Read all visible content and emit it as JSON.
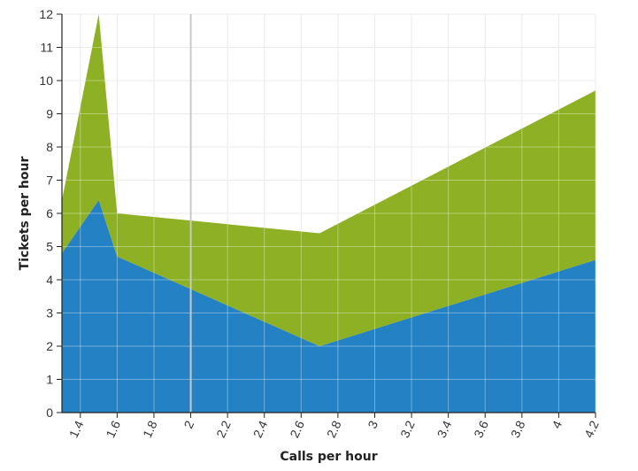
{
  "chart_data": {
    "type": "area",
    "stacked": true,
    "title": "",
    "xlabel": "Calls per hour",
    "ylabel": "Tickets per hour",
    "xlim": [
      1.3,
      4.2
    ],
    "ylim": [
      0,
      12
    ],
    "x_ticks": [
      1.4,
      1.6,
      1.8,
      2,
      2.2,
      2.4,
      2.6,
      2.8,
      3,
      3.2,
      3.4,
      3.6,
      3.8,
      4,
      4.2
    ],
    "x_tick_labels": [
      "1.4",
      "1.6",
      "1.8",
      "2",
      "2.2",
      "2.4",
      "2.6",
      "2.8",
      "3",
      "3.2",
      "3.4",
      "3.6",
      "3.8",
      "4",
      "4.2"
    ],
    "y_ticks": [
      0,
      1,
      2,
      3,
      4,
      5,
      6,
      7,
      8,
      9,
      10,
      11,
      12
    ],
    "y_tick_labels": [
      "0",
      "1",
      "2",
      "3",
      "4",
      "5",
      "6",
      "7",
      "8",
      "9",
      "10",
      "11",
      "12"
    ],
    "grid": true,
    "legend": "none",
    "x": [
      1.3,
      1.5,
      1.6,
      2.7,
      4.2
    ],
    "series": [
      {
        "values": [
          4.8,
          6.4,
          4.7,
          2.0,
          4.6
        ],
        "color": "#2482c4"
      },
      {
        "values": [
          1.6,
          5.6,
          1.3,
          3.4,
          5.1
        ],
        "color": "#8db024"
      }
    ],
    "totals": [
      6.4,
      12.0,
      6.0,
      5.4,
      9.7
    ],
    "highlight_x": 2
  }
}
